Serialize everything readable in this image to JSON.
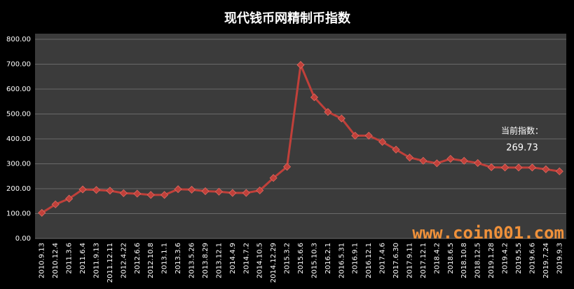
{
  "chart_data": {
    "type": "line",
    "title": "现代钱币网精制币指数",
    "categories": [
      "2010.9.13",
      "2010.12.4",
      "2011.3.6",
      "2011.6.4",
      "2011.9.13",
      "2011.12.11",
      "2012.4.22",
      "2012.6.6",
      "2012.10.8",
      "2013.1.1",
      "2013.3.6",
      "2013.5.26",
      "2013.8.29",
      "2013.12.1",
      "2014.4.9",
      "2014.7.2",
      "2014.10.5",
      "2014.12.29",
      "2015.3.2",
      "2015.6.6",
      "2015.10.3",
      "2016.2.1",
      "2016.5.31",
      "2016.9.1",
      "2016.12.1",
      "2017.4.6",
      "2017.6.30",
      "2017.9.11",
      "2017.12.1",
      "2018.4.2",
      "2018.6.5",
      "2018.10.8",
      "2018.12.5",
      "2019.1.28",
      "2019.4.2",
      "2019.5.5",
      "2019.6.6",
      "2019.7.24",
      "2019.9.3"
    ],
    "series": [
      {
        "name": "精制币指数",
        "color": "#c0403a",
        "values": [
          103,
          137,
          160,
          197,
          195,
          192,
          182,
          180,
          175,
          175,
          198,
          196,
          190,
          188,
          183,
          183,
          193,
          243,
          288,
          697,
          567,
          508,
          482,
          413,
          413,
          388,
          357,
          325,
          312,
          302,
          320,
          312,
          303,
          286,
          285,
          285,
          285,
          278,
          269.73
        ]
      }
    ],
    "ylim": [
      0,
      800
    ],
    "yticks": [
      {
        "value": 0,
        "label": "0.00"
      },
      {
        "value": 100,
        "label": "100.00"
      },
      {
        "value": 200,
        "label": "200.00"
      },
      {
        "value": 300,
        "label": "300.00"
      },
      {
        "value": 400,
        "label": "400.00"
      },
      {
        "value": 500,
        "label": "500.00"
      },
      {
        "value": 600,
        "label": "600.00"
      },
      {
        "value": 700,
        "label": "700.00"
      },
      {
        "value": 800,
        "label": "800.00"
      }
    ],
    "grid": true,
    "annotations": [
      "当前指数：",
      "269.73"
    ],
    "watermark": "www.coin001.com"
  }
}
